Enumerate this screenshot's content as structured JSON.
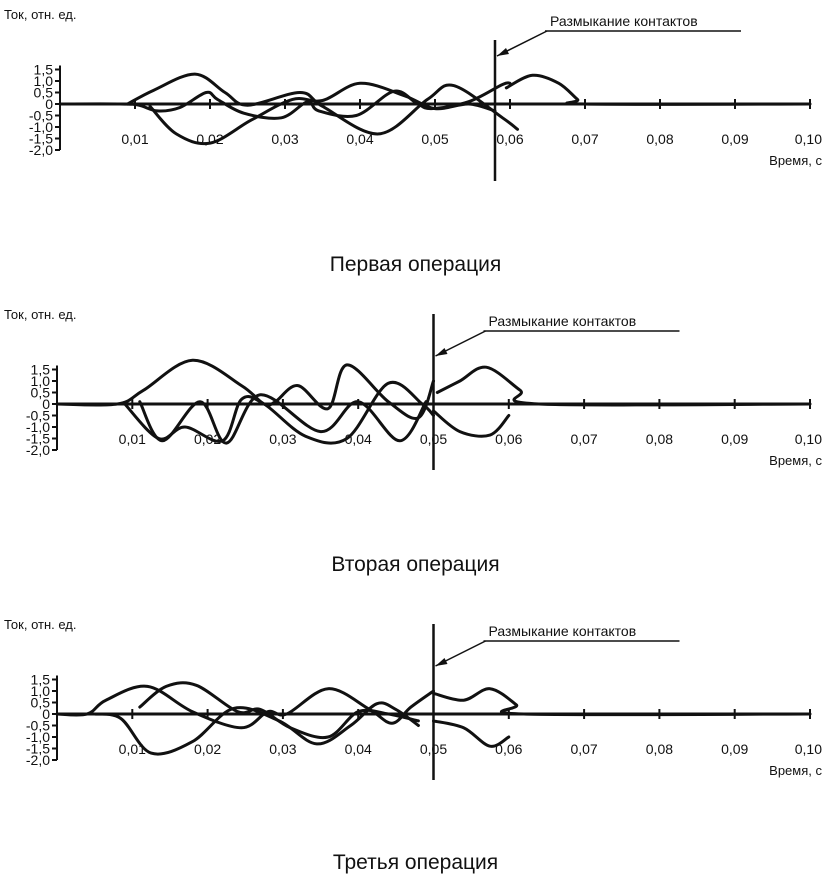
{
  "chart_data": [
    {
      "type": "line",
      "title": "Первая операция",
      "ylabel": "Ток, отн. ед.",
      "xlabel": "Время, с",
      "annotation": "Размыкание контактов",
      "contact_separation_time": 0.058,
      "xlim": [
        0,
        0.1
      ],
      "ylim": [
        -2.0,
        1.5
      ],
      "x_ticks": [
        "0,01",
        "0,02",
        "0,03",
        "0,04",
        "0,05",
        "0,06",
        "0,07",
        "0,08",
        "0,09",
        "0,10"
      ],
      "y_ticks": [
        "1,5",
        "1,0",
        "0,5",
        "0",
        "-0,5",
        "-1,0",
        "-1,5",
        "-2,0"
      ],
      "series": [
        {
          "x": [
            0,
            0.008,
            0.0105,
            0.013,
            0.016,
            0.0195,
            0.021,
            0.0245,
            0.0295,
            0.033,
            0.0345,
            0.0395,
            0.0445,
            0.0475,
            0.0495,
            0.0545,
            0.059,
            0.06
          ],
          "y": [
            0,
            0,
            -0.05,
            -0.3,
            -0.15,
            0.5,
            0.2,
            -0.4,
            -0.6,
            0.1,
            -0.3,
            -0.5,
            0.55,
            0.05,
            -0.2,
            0.1,
            0.85,
            0.9
          ]
        },
        {
          "x": [
            0.009,
            0.0125,
            0.018,
            0.022,
            0.025,
            0.032,
            0.035,
            0.0425,
            0.049,
            0.0525,
            0.059,
            0.061
          ],
          "y": [
            0,
            0.6,
            1.3,
            0.5,
            -0.05,
            0.5,
            -0.1,
            -1.3,
            0.2,
            0.8,
            -0.6,
            -1.1
          ]
        },
        {
          "x": [
            0.012,
            0.0155,
            0.02,
            0.0255,
            0.031,
            0.035,
            0.04,
            0.046,
            0.05,
            0.0545,
            0.058
          ],
          "y": [
            -0.1,
            -1.3,
            -1.7,
            -0.7,
            0.2,
            0.15,
            0.9,
            0.35,
            -0.2,
            0.0,
            -0.3
          ]
        },
        {
          "x": [
            0.0595,
            0.063,
            0.0665,
            0.069,
            0.07,
            0.1
          ],
          "y": [
            0.7,
            1.25,
            0.9,
            0.2,
            0.0,
            0.0
          ]
        }
      ]
    },
    {
      "type": "line",
      "title": "Вторая операция",
      "ylabel": "Ток, отн. ед.",
      "xlabel": "Время, с",
      "annotation": "Размыкание контактов",
      "contact_separation_time": 0.05,
      "xlim": [
        0,
        0.1
      ],
      "ylim": [
        -2.0,
        1.5
      ],
      "x_ticks": [
        "0,01",
        "0,02",
        "0,03",
        "0,04",
        "0,05",
        "0,06",
        "0,07",
        "0,08",
        "0,09",
        "0,10"
      ],
      "y_ticks": [
        "1,5",
        "1,0",
        "0,5",
        "0",
        "-0,5",
        "-1,0",
        "-1,5",
        "-2,0"
      ],
      "series": [
        {
          "x": [
            0,
            0.008,
            0.0115,
            0.018,
            0.0245,
            0.0275,
            0.029,
            0.032,
            0.036,
            0.0385,
            0.044,
            0.048,
            0.05
          ],
          "y": [
            0,
            0,
            0.6,
            1.9,
            0.8,
            0.0,
            0.1,
            0.8,
            -0.2,
            1.7,
            0.1,
            -0.6,
            1.0
          ]
        },
        {
          "x": [
            0.009,
            0.0135,
            0.017,
            0.022,
            0.0245,
            0.0275,
            0.033,
            0.0385,
            0.044,
            0.0485,
            0.05
          ],
          "y": [
            0,
            -1.5,
            -1.0,
            -1.6,
            0.2,
            0.0,
            -1.4,
            -1.5,
            0.9,
            0.0,
            -0.5
          ]
        },
        {
          "x": [
            0.011,
            0.014,
            0.019,
            0.0225,
            0.027,
            0.035,
            0.04,
            0.0455,
            0.049
          ],
          "y": [
            0.1,
            -1.6,
            0.1,
            -1.7,
            0.4,
            -1.2,
            0.1,
            -1.6,
            0.1
          ]
        },
        {
          "x": [
            0.0505,
            0.0535,
            0.057,
            0.0615,
            0.064,
            0.1
          ],
          "y": [
            0.5,
            1.0,
            1.6,
            0.6,
            0.0,
            0.0
          ]
        },
        {
          "x": [
            0.05,
            0.0535,
            0.0575,
            0.06
          ],
          "y": [
            -0.3,
            -1.2,
            -1.35,
            -0.5
          ]
        }
      ]
    },
    {
      "type": "line",
      "title": "Третья операция",
      "ylabel": "Ток, отн. ед.",
      "xlabel": "Время, с",
      "annotation": "Размыкание контактов",
      "contact_separation_time": 0.05,
      "xlim": [
        0,
        0.1
      ],
      "ylim": [
        -2.0,
        1.5
      ],
      "x_ticks": [
        "0,01",
        "0,02",
        "0,03",
        "0,04",
        "0,05",
        "0,06",
        "0,07",
        "0,08",
        "0,09",
        "0,10"
      ],
      "y_ticks": [
        "1,5",
        "1,0",
        "0,5",
        "0",
        "-0,5",
        "-1,0",
        "-1,5",
        "-2,0"
      ],
      "series": [
        {
          "x": [
            0,
            0.004,
            0.0065,
            0.012,
            0.018,
            0.0245,
            0.028,
            0.0305,
            0.036,
            0.0415,
            0.0445,
            0.047,
            0.05
          ],
          "y": [
            0,
            0,
            0.6,
            1.2,
            0.1,
            -0.6,
            0.1,
            0.0,
            1.1,
            0.2,
            -0.4,
            0.3,
            1.0
          ]
        },
        {
          "x": [
            0.005,
            0.0085,
            0.0125,
            0.018,
            0.0235,
            0.0295,
            0.0345,
            0.039,
            0.0425,
            0.045,
            0.048
          ],
          "y": [
            0,
            -0.2,
            -1.7,
            -1.2,
            0.25,
            -0.3,
            -1.3,
            -0.5,
            0.45,
            0.2,
            -0.5
          ]
        },
        {
          "x": [
            0.011,
            0.0145,
            0.0185,
            0.024,
            0.027,
            0.031,
            0.036,
            0.04,
            0.044,
            0.048
          ],
          "y": [
            0.3,
            1.2,
            1.25,
            0.1,
            0.2,
            -0.6,
            -1.0,
            0.1,
            0.0,
            -0.3
          ]
        },
        {
          "x": [
            0.05,
            0.054,
            0.0575,
            0.061,
            0.062,
            0.1
          ],
          "y": [
            0.9,
            0.6,
            1.1,
            0.4,
            0.0,
            0.0
          ]
        },
        {
          "x": [
            0.05,
            0.054,
            0.0575,
            0.06
          ],
          "y": [
            -0.3,
            -0.6,
            -1.4,
            -1.0
          ]
        }
      ]
    }
  ]
}
